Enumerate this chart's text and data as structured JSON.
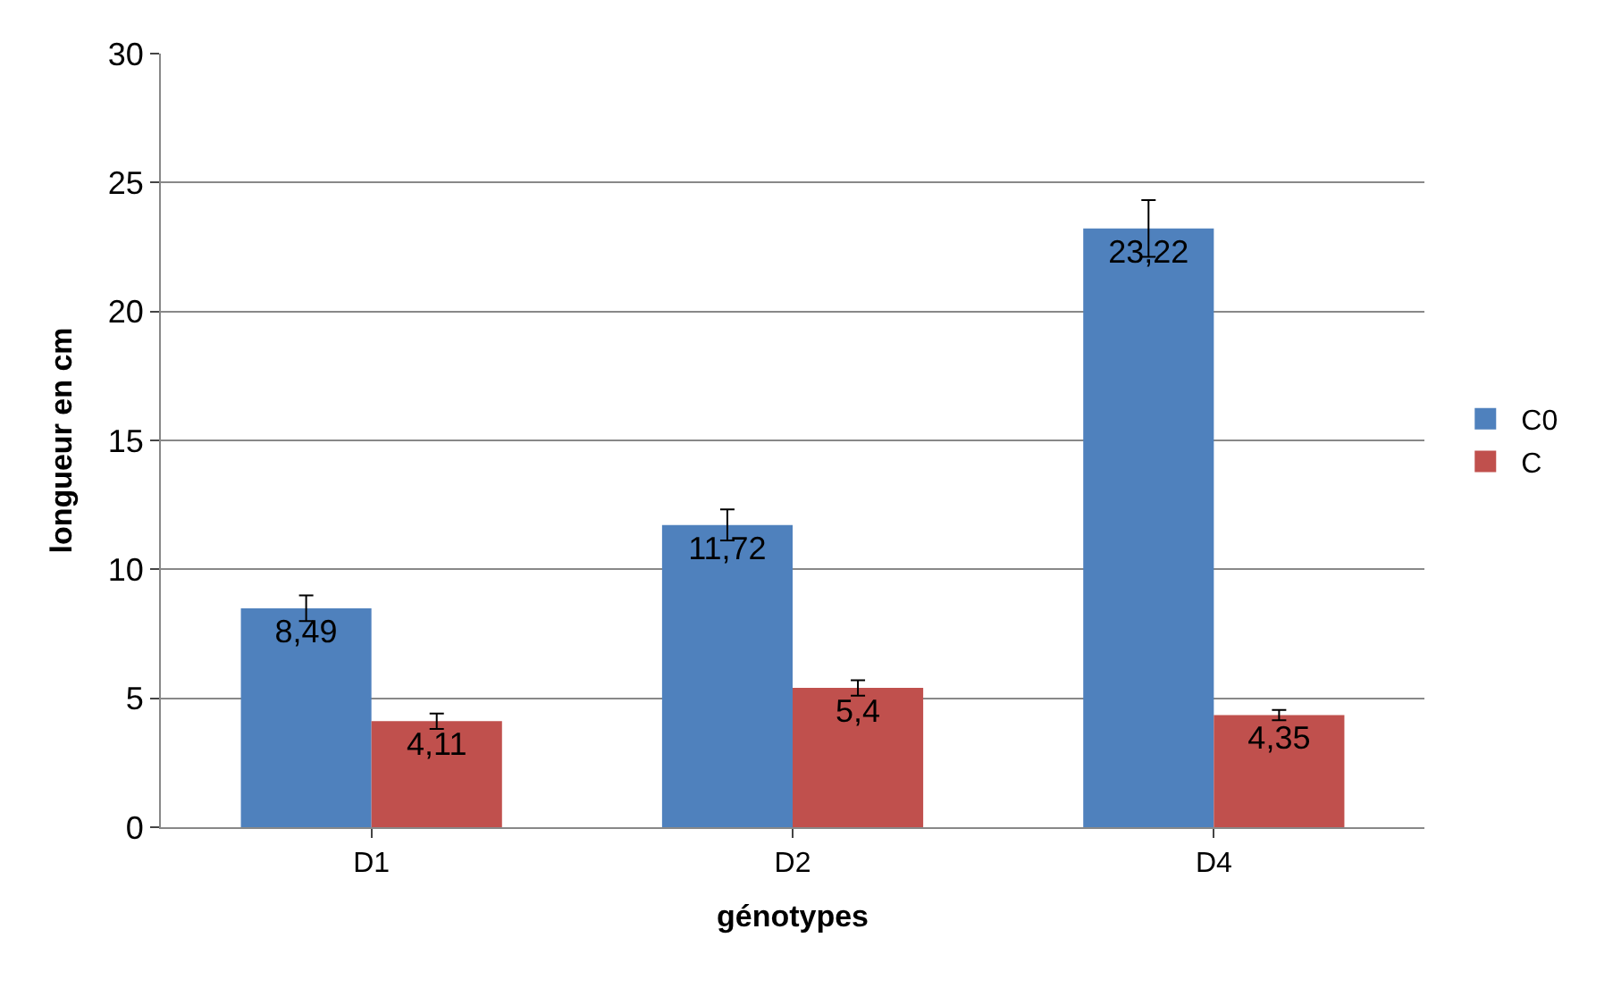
{
  "chart_data": {
    "type": "bar",
    "xlabel": "génotypes",
    "ylabel": "longueur en cm",
    "categories": [
      "D1",
      "D2",
      "D4"
    ],
    "series": [
      {
        "name": "C0",
        "color": "#4f81bd",
        "values": [
          8.49,
          11.72,
          23.22
        ],
        "value_labels": [
          "8,49",
          "11,72",
          "23,22"
        ],
        "errors": [
          0.5,
          0.6,
          1.1
        ]
      },
      {
        "name": "C",
        "color": "#c0504d",
        "values": [
          4.11,
          5.4,
          4.35
        ],
        "value_labels": [
          "4,11",
          "5,4",
          "4,35"
        ],
        "errors": [
          0.3,
          0.3,
          0.2
        ]
      }
    ],
    "ylim": [
      0,
      30
    ],
    "yticks": [
      0,
      5,
      10,
      15,
      20,
      25,
      30
    ],
    "grid": "y",
    "legend": "right"
  }
}
